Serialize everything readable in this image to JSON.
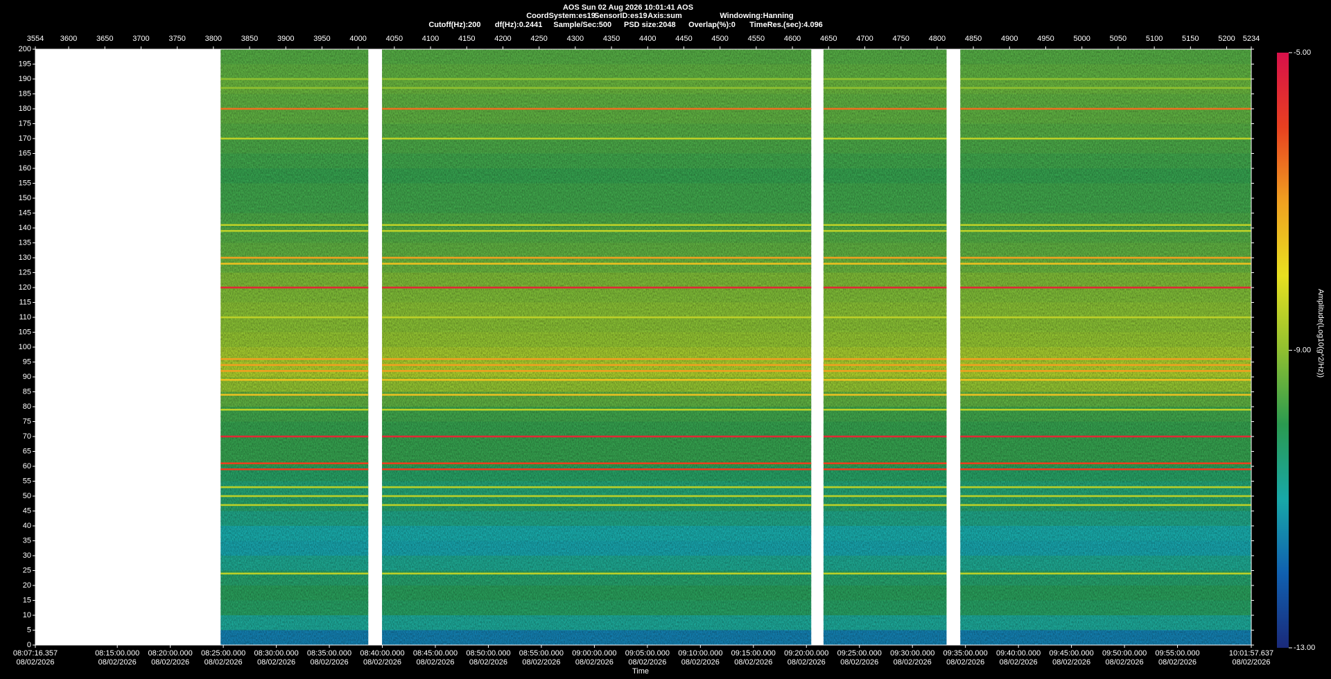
{
  "chart_data": {
    "type": "spectrogram",
    "title": "AOS  Sun 02 Aug 2026 10:01:41  AOS",
    "subtitle": [
      "CoordSystem:es19",
      "SensorID:es19",
      "Axis:sum",
      "Windowing:Hanning"
    ],
    "parameters": [
      "Cutoff(Hz):200",
      "df(Hz):0.2441",
      "Sample/Sec:500",
      "PSD size:2048",
      "Overlap(%):0",
      "TimeRes.(sec):4.096"
    ],
    "x_label": "Time",
    "xlim": [
      3554,
      5234
    ],
    "xticks": [
      3554,
      3600,
      3650,
      3700,
      3750,
      3800,
      3850,
      3900,
      3950,
      4000,
      4050,
      4100,
      4150,
      4200,
      4250,
      4300,
      4350,
      4400,
      4450,
      4500,
      4550,
      4600,
      4650,
      4700,
      4750,
      4800,
      4850,
      4900,
      4950,
      5000,
      5050,
      5100,
      5150,
      5200,
      5234
    ],
    "x2lim": [
      29236.357,
      36117.637
    ],
    "x2ticks": [
      {
        "value": 29236.357,
        "label": "08:07:16.357"
      },
      {
        "value": 29700,
        "label": "08:15:00.000"
      },
      {
        "value": 30000,
        "label": "08:20:00.000"
      },
      {
        "value": 30300,
        "label": "08:25:00.000"
      },
      {
        "value": 30600,
        "label": "08:30:00.000"
      },
      {
        "value": 30900,
        "label": "08:35:00.000"
      },
      {
        "value": 31200,
        "label": "08:40:00.000"
      },
      {
        "value": 31500,
        "label": "08:45:00.000"
      },
      {
        "value": 31800,
        "label": "08:50:00.000"
      },
      {
        "value": 32100,
        "label": "08:55:00.000"
      },
      {
        "value": 32400,
        "label": "09:00:00.000"
      },
      {
        "value": 32700,
        "label": "09:05:00.000"
      },
      {
        "value": 33000,
        "label": "09:10:00.000"
      },
      {
        "value": 33300,
        "label": "09:15:00.000"
      },
      {
        "value": 33600,
        "label": "09:20:00.000"
      },
      {
        "value": 33900,
        "label": "09:25:00.000"
      },
      {
        "value": 34200,
        "label": "09:30:00.000"
      },
      {
        "value": 34500,
        "label": "09:35:00.000"
      },
      {
        "value": 34800,
        "label": "09:40:00.000"
      },
      {
        "value": 35100,
        "label": "09:45:00.000"
      },
      {
        "value": 35400,
        "label": "09:50:00.000"
      },
      {
        "value": 35700,
        "label": "09:55:00.000"
      },
      {
        "value": 36117.637,
        "label": "10:01:57.637"
      }
    ],
    "date": "08/02/2026",
    "ylim": [
      0,
      200
    ],
    "yticks": [
      0,
      5,
      10,
      15,
      20,
      25,
      30,
      35,
      40,
      45,
      50,
      55,
      60,
      65,
      70,
      75,
      80,
      85,
      90,
      95,
      100,
      105,
      110,
      115,
      120,
      125,
      130,
      135,
      140,
      145,
      150,
      155,
      160,
      165,
      170,
      175,
      180,
      185,
      190,
      195,
      200
    ],
    "clim": [
      -13,
      -5
    ],
    "cticks": [
      {
        "value": -5,
        "label": "-5.00"
      },
      {
        "value": -9,
        "label": "-9.00"
      },
      {
        "value": -13,
        "label": "-13.00"
      }
    ],
    "colorbar_label": "Amplitude(Log10(g^2/Hz))",
    "colormap": [
      "#1a2a7a",
      "#1060b0",
      "#18a8a8",
      "#2a9a50",
      "#90c030",
      "#e8e020",
      "#f0a020",
      "#e84020",
      "#d8104a"
    ],
    "segments": [
      [
        3810,
        4014
      ],
      [
        4033,
        4626
      ],
      [
        4643,
        4813
      ],
      [
        4832,
        5234
      ]
    ],
    "profile": {
      "bins": [
        0,
        5,
        10,
        15,
        20,
        25,
        30,
        35,
        40,
        45,
        50,
        55,
        60,
        65,
        70,
        75,
        80,
        85,
        90,
        95,
        100,
        105,
        110,
        115,
        120,
        125,
        130,
        135,
        140,
        145,
        150,
        155,
        160,
        165,
        170,
        175,
        180,
        185,
        190,
        195,
        200
      ],
      "values": [
        -11.6,
        -10.8,
        -10.2,
        -10.1,
        -10.3,
        -10.7,
        -11.1,
        -11.0,
        -10.6,
        -10.3,
        -10.4,
        -10.2,
        -9.9,
        -9.9,
        -9.9,
        -9.8,
        -9.5,
        -9.0,
        -8.7,
        -8.8,
        -9.0,
        -9.1,
        -9.1,
        -9.2,
        -9.2,
        -9.4,
        -9.5,
        -9.6,
        -9.7,
        -9.8,
        -9.8,
        -9.9,
        -9.8,
        -9.7,
        -9.6,
        -9.5,
        -9.5,
        -9.4,
        -9.5,
        -9.6
      ]
    },
    "lines": {
      "freq": [
        190,
        187,
        180,
        170,
        141,
        139,
        130,
        128,
        120,
        110,
        96,
        94,
        92,
        89,
        84,
        79,
        70,
        61,
        59,
        53,
        50,
        47,
        24
      ],
      "amplitude": [
        -9.0,
        -9.0,
        -6.5,
        -8.5,
        -8.5,
        -8.5,
        -7.0,
        -7.5,
        -5.5,
        -8.5,
        -7.0,
        -7.0,
        -7.0,
        -7.5,
        -7.5,
        -8.5,
        -5.5,
        -6.0,
        -6.0,
        -8.5,
        -8.5,
        -8.5,
        -8.5
      ]
    }
  }
}
